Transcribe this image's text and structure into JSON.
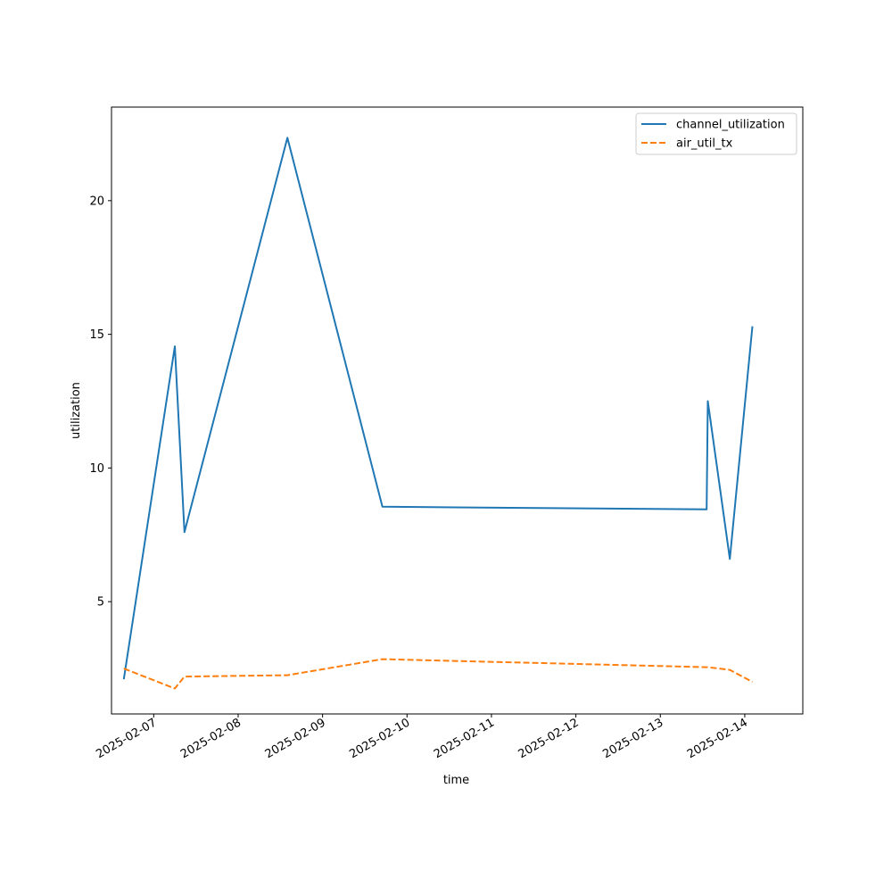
{
  "chart_data": {
    "type": "line",
    "xlabel": "time",
    "ylabel": "utilization",
    "x_axis_type": "datetime",
    "xlim": [
      "2025-02-06T12:00",
      "2025-02-14T16:30"
    ],
    "ylim": [
      0.8,
      23.5
    ],
    "x_ticks": [
      "2025-02-07",
      "2025-02-08",
      "2025-02-09",
      "2025-02-10",
      "2025-02-11",
      "2025-02-12",
      "2025-02-13",
      "2025-02-14"
    ],
    "y_ticks": [
      5,
      10,
      15,
      20
    ],
    "grid": false,
    "legend_position": "upper right",
    "series": [
      {
        "name": "channel_utilization",
        "color": "#1f77b4",
        "linestyle": "solid",
        "points": [
          {
            "x": "2025-02-06T15:30",
            "y": 2.1
          },
          {
            "x": "2025-02-07T06:00",
            "y": 14.55
          },
          {
            "x": "2025-02-07T08:45",
            "y": 7.6
          },
          {
            "x": "2025-02-08T14:00",
            "y": 22.35
          },
          {
            "x": "2025-02-09T17:00",
            "y": 8.55
          },
          {
            "x": "2025-02-13T13:10",
            "y": 8.45
          },
          {
            "x": "2025-02-13T13:30",
            "y": 12.5
          },
          {
            "x": "2025-02-13T19:45",
            "y": 6.6
          },
          {
            "x": "2025-02-14T02:10",
            "y": 15.3
          }
        ]
      },
      {
        "name": "air_util_tx",
        "color": "#ff7f0e",
        "linestyle": "dashed",
        "points": [
          {
            "x": "2025-02-06T15:30",
            "y": 2.5
          },
          {
            "x": "2025-02-07T06:00",
            "y": 1.75
          },
          {
            "x": "2025-02-07T08:45",
            "y": 2.2
          },
          {
            "x": "2025-02-08T14:00",
            "y": 2.25
          },
          {
            "x": "2025-02-09T17:00",
            "y": 2.85
          },
          {
            "x": "2025-02-13T13:10",
            "y": 2.55
          },
          {
            "x": "2025-02-13T13:30",
            "y": 2.55
          },
          {
            "x": "2025-02-13T19:45",
            "y": 2.45
          },
          {
            "x": "2025-02-14T02:10",
            "y": 2.0
          }
        ]
      }
    ]
  }
}
